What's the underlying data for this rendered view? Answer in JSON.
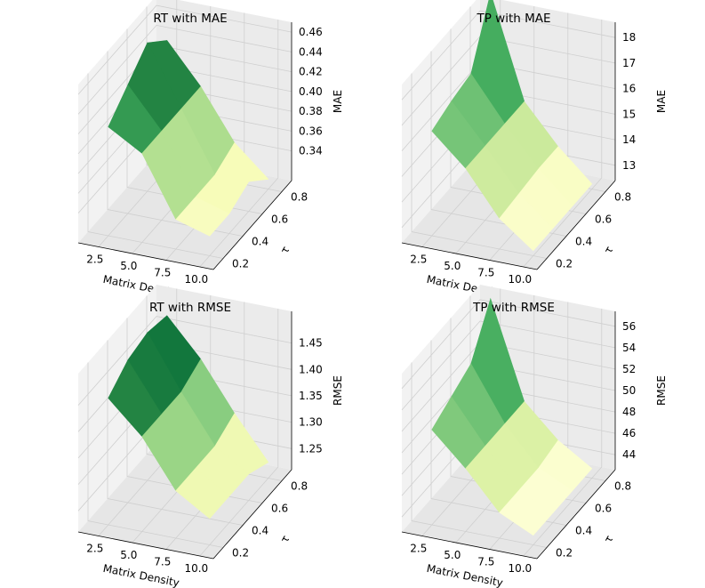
{
  "chart_data": [
    {
      "type": "surface3d",
      "title": "RT with MAE",
      "xlabel": "Matrix Density",
      "ylabel": "τ",
      "zlabel": "MAE",
      "xlim": [
        1,
        11
      ],
      "ylim": [
        0.1,
        0.9
      ],
      "zlim": [
        0.31,
        0.47
      ],
      "x": [
        2.5,
        5.0,
        7.5,
        10.0
      ],
      "y": [
        0.2,
        0.4,
        0.6,
        0.8
      ],
      "z": [
        [
          0.42,
          0.44,
          0.46,
          0.44
        ],
        [
          0.4,
          0.4,
          0.4,
          0.4
        ],
        [
          0.34,
          0.34,
          0.34,
          0.35
        ],
        [
          0.33,
          0.33,
          0.34,
          0.32
        ]
      ],
      "xticks": [
        "2.5",
        "5.0",
        "7.5",
        "10.0"
      ],
      "yticks": [
        "0.2",
        "0.4",
        "0.6",
        "0.8"
      ],
      "zticks": [
        "0.34",
        "0.36",
        "0.38",
        "0.40",
        "0.42",
        "0.44",
        "0.46"
      ],
      "colormap": "YlGn"
    },
    {
      "type": "surface3d",
      "title": "TP with MAE",
      "xlabel": "Matrix Density",
      "ylabel": "τ",
      "zlabel": "MAE",
      "xlim": [
        1,
        11
      ],
      "ylim": [
        0.1,
        0.9
      ],
      "zlim": [
        12.4,
        18.6
      ],
      "x": [
        2.5,
        5.0,
        7.5,
        10.0
      ],
      "y": [
        0.2,
        0.4,
        0.6,
        0.8
      ],
      "z": [
        [
          16.5,
          16.8,
          17.0,
          19.3
        ],
        [
          15.3,
          15.3,
          15.3,
          15.3
        ],
        [
          13.6,
          13.7,
          13.8,
          13.8
        ],
        [
          12.6,
          12.6,
          12.6,
          12.6
        ]
      ],
      "xticks": [
        "2.5",
        "5.0",
        "7.5",
        "10.0"
      ],
      "yticks": [
        "0.2",
        "0.4",
        "0.6",
        "0.8"
      ],
      "zticks": [
        "13",
        "14",
        "15",
        "16",
        "17",
        "18"
      ],
      "colormap": "YlGn"
    },
    {
      "type": "surface3d",
      "title": "RT with RMSE",
      "xlabel": "Matrix Density",
      "ylabel": "τ",
      "zlabel": "RMSE",
      "xlim": [
        1,
        11
      ],
      "ylim": [
        0.1,
        0.9
      ],
      "zlim": [
        1.21,
        1.51
      ],
      "x": [
        2.5,
        5.0,
        7.5,
        10.0
      ],
      "y": [
        0.2,
        0.4,
        0.6,
        0.8
      ],
      "z": [
        [
          1.45,
          1.48,
          1.49,
          1.48
        ],
        [
          1.39,
          1.39,
          1.39,
          1.41
        ],
        [
          1.3,
          1.3,
          1.3,
          1.32
        ],
        [
          1.26,
          1.26,
          1.26,
          1.24
        ]
      ],
      "xticks": [
        "2.5",
        "5.0",
        "7.5",
        "10.0"
      ],
      "yticks": [
        "0.2",
        "0.4",
        "0.6",
        "0.8"
      ],
      "zticks": [
        "1.25",
        "1.30",
        "1.35",
        "1.40",
        "1.45"
      ],
      "colormap": "YlGn"
    },
    {
      "type": "surface3d",
      "title": "TP with RMSE",
      "xlabel": "Matrix Density",
      "ylabel": "τ",
      "zlabel": "RMSE",
      "xlim": [
        1,
        11
      ],
      "ylim": [
        0.1,
        0.9
      ],
      "zlim": [
        42.6,
        57.4
      ],
      "x": [
        2.5,
        5.0,
        7.5,
        10.0
      ],
      "y": [
        0.2,
        0.4,
        0.6,
        0.8
      ],
      "z": [
        [
          51.5,
          52.5,
          53.5,
          57.5
        ],
        [
          48.5,
          48.5,
          48.5,
          48.5
        ],
        [
          45.0,
          45.0,
          45.0,
          45.5
        ],
        [
          43.5,
          43.5,
          43.5,
          43.5
        ]
      ],
      "xticks": [
        "2.5",
        "5.0",
        "7.5",
        "10.0"
      ],
      "yticks": [
        "0.2",
        "0.4",
        "0.6",
        "0.8"
      ],
      "zticks": [
        "44",
        "46",
        "48",
        "50",
        "52",
        "54",
        "56"
      ],
      "colormap": "YlGn"
    }
  ]
}
